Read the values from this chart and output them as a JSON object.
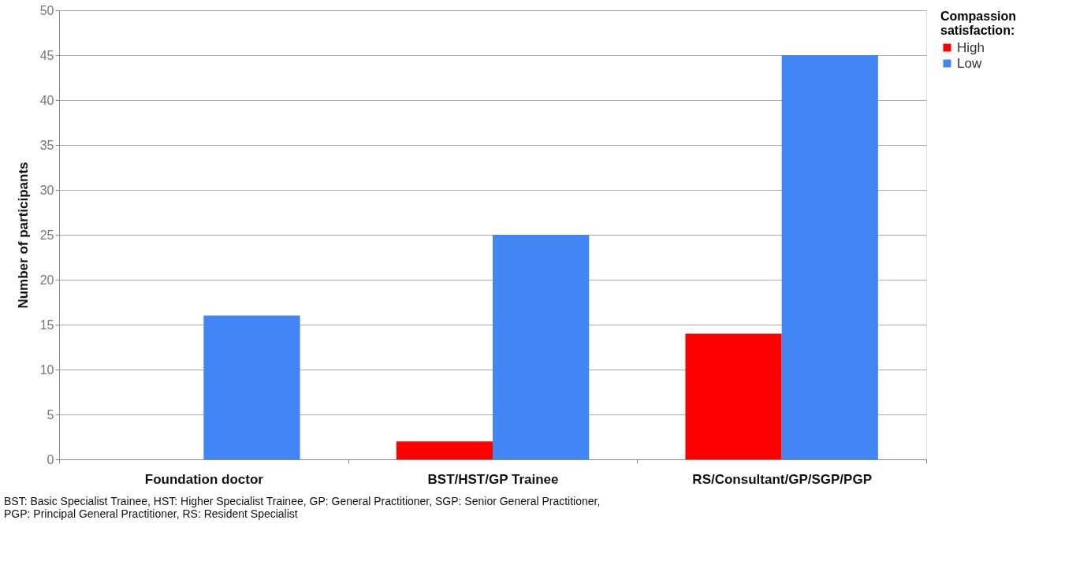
{
  "chart_data": {
    "type": "bar",
    "ylabel": "Number of participants",
    "legend_title": "Compassion satisfaction:",
    "categories": [
      "Foundation doctor",
      "BST/HST/GP Trainee",
      "RS/Consultant/GP/SGP/PGP"
    ],
    "series": [
      {
        "name": "High",
        "color": "#ff0000",
        "values": [
          0,
          2,
          14
        ]
      },
      {
        "name": "Low",
        "color": "#4285f4",
        "values": [
          16,
          25,
          45
        ]
      }
    ],
    "ylim": [
      0,
      50
    ],
    "yticks": [
      0,
      5,
      10,
      15,
      20,
      25,
      30,
      35,
      40,
      45,
      50
    ],
    "grid": "y",
    "legend": "right",
    "annotations": [
      "BST: Basic Specialist Trainee, HST: Higher Specialist Trainee, GP: General Practitioner, SGP: Senior General Practitioner,",
      "PGP: Principal General Practitioner, RS: Resident Specialist"
    ]
  }
}
